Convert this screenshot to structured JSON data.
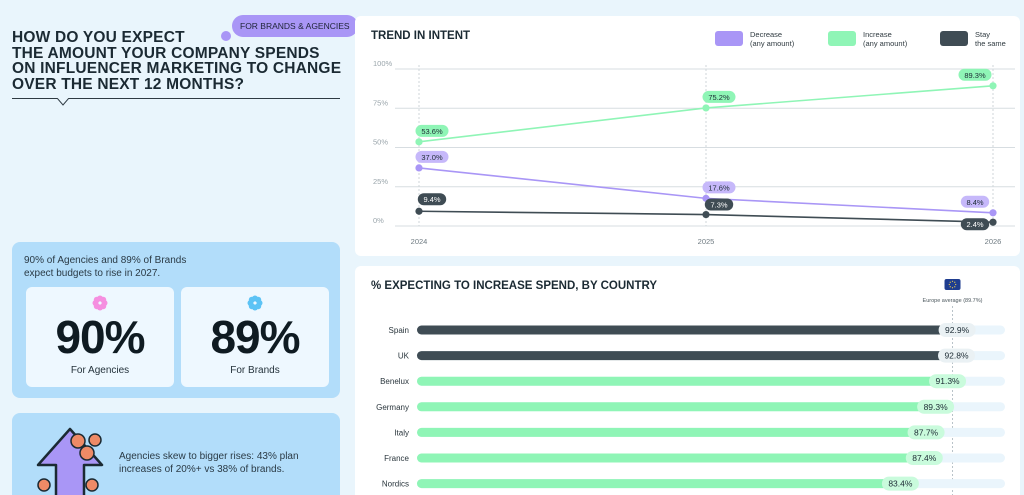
{
  "header": {
    "title_lines": [
      "HOW DO YOU EXPECT",
      "THE AMOUNT YOUR COMPANY SPENDS",
      "ON INFLUENCER MARKETING TO CHANGE",
      "OVER THE NEXT 12 MONTHS?"
    ],
    "tag": "FOR BRANDS & AGENCIES"
  },
  "summary": {
    "line1": "90% of Agencies and 89% of Brands",
    "line2": "expect budgets to rise in 2027.",
    "agencies_value": "90%",
    "agencies_label": "For Agencies",
    "brands_value": "89%",
    "brands_label": "For Brands"
  },
  "skew": {
    "line1": "Agencies skew to bigger rises: 43% plan",
    "line2": "increases of 20%+ vs 38% of brands."
  },
  "colors": {
    "decrease": "#a996f6",
    "increase": "#8ff5b6",
    "stay": "#3f4c54",
    "dark_bar": "#3f4c54",
    "green_bar": "#8ff5b6",
    "track": "#eaf5fc"
  },
  "chart_data": [
    {
      "type": "line",
      "title": "TREND IN INTENT",
      "x": [
        "2024",
        "2025",
        "2026"
      ],
      "ylim": [
        0,
        100
      ],
      "yticks": [
        "0%",
        "25%",
        "50%",
        "75%",
        "100%"
      ],
      "grid": true,
      "legend_position": "top-right",
      "legend": [
        {
          "line1": "Decrease",
          "line2": "(any amount)",
          "key": "decrease"
        },
        {
          "line1": "Increase",
          "line2": "(any amount)",
          "key": "increase"
        },
        {
          "line1": "Stay",
          "line2": "the same",
          "key": "stay"
        }
      ],
      "series": [
        {
          "name": "Increase (any amount)",
          "key": "increase",
          "values": [
            53.6,
            75.2,
            89.3
          ],
          "labels": [
            "53.6%",
            "75.2%",
            "89.3%"
          ]
        },
        {
          "name": "Decrease (any amount)",
          "key": "decrease",
          "values": [
            37.0,
            17.6,
            8.4
          ],
          "labels": [
            "37.0%",
            "17.6%",
            "8.4%"
          ]
        },
        {
          "name": "Stay the same",
          "key": "stay",
          "values": [
            9.4,
            7.3,
            2.4
          ],
          "labels": [
            "9.4%",
            "7.3%",
            "2.4%"
          ]
        }
      ]
    },
    {
      "type": "bar",
      "orientation": "horizontal",
      "title": "% EXPECTING TO INCREASE SPEND, BY COUNTRY",
      "reference": {
        "label": "Europe average (89.7%)",
        "value": 89.7,
        "icon": "eu-flag-icon"
      },
      "xlim": [
        0,
        100
      ],
      "categories": [
        "Spain",
        "UK",
        "Benelux",
        "Germany",
        "Italy",
        "France",
        "Nordics"
      ],
      "values": [
        92.9,
        92.8,
        91.3,
        89.3,
        87.7,
        87.4,
        83.4
      ],
      "labels": [
        "92.9%",
        "92.8%",
        "91.3%",
        "89.3%",
        "87.7%",
        "87.4%",
        "83.4%"
      ],
      "bar_colors": [
        "dark",
        "dark",
        "green",
        "green",
        "green",
        "green",
        "green"
      ]
    }
  ]
}
